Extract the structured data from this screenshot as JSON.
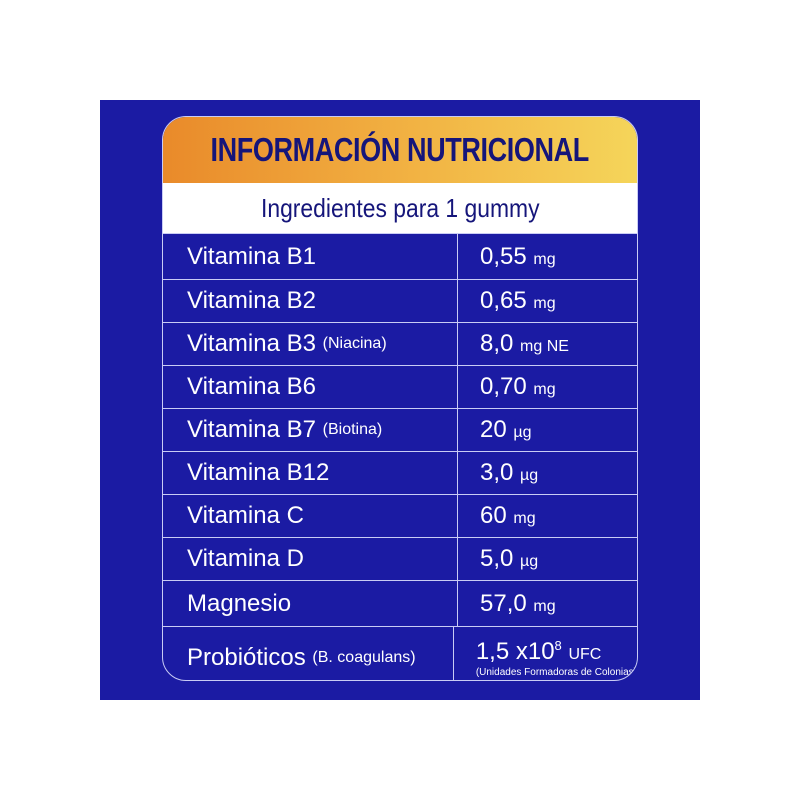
{
  "title": "INFORMACIÓN NUTRICIONAL",
  "subtitle": "Ingredientes para 1 gummy",
  "colors": {
    "background": "#1b1ba3",
    "header_gradient": [
      "#e98a2a",
      "#f5d55a"
    ],
    "text_dark": "#15157a"
  },
  "rows": [
    {
      "name": "Vitamina B1",
      "qualifier": "",
      "value": "0,55",
      "unit": "mg"
    },
    {
      "name": "Vitamina B2",
      "qualifier": "",
      "value": "0,65",
      "unit": "mg"
    },
    {
      "name": "Vitamina B3",
      "qualifier": "(Niacina)",
      "value": "8,0",
      "unit": "mg NE"
    },
    {
      "name": "Vitamina B6",
      "qualifier": "",
      "value": "0,70",
      "unit": "mg"
    },
    {
      "name": "Vitamina B7",
      "qualifier": "(Biotina)",
      "value": "20",
      "unit": "µg"
    },
    {
      "name": "Vitamina B12",
      "qualifier": "",
      "value": "3,0",
      "unit": "µg"
    },
    {
      "name": "Vitamina C",
      "qualifier": "",
      "value": "60",
      "unit": "mg"
    },
    {
      "name": "Vitamina D",
      "qualifier": "",
      "value": "5,0",
      "unit": "µg"
    },
    {
      "name": "Magnesio",
      "qualifier": "",
      "value": "57,0",
      "unit": "mg"
    }
  ],
  "probiotic": {
    "name": "Probióticos",
    "qualifier": "(B. coagulans)",
    "value": "1,5 x10",
    "exponent": "8",
    "unit": "UFC",
    "note": "(Unidades Formadoras de Colonias)"
  }
}
